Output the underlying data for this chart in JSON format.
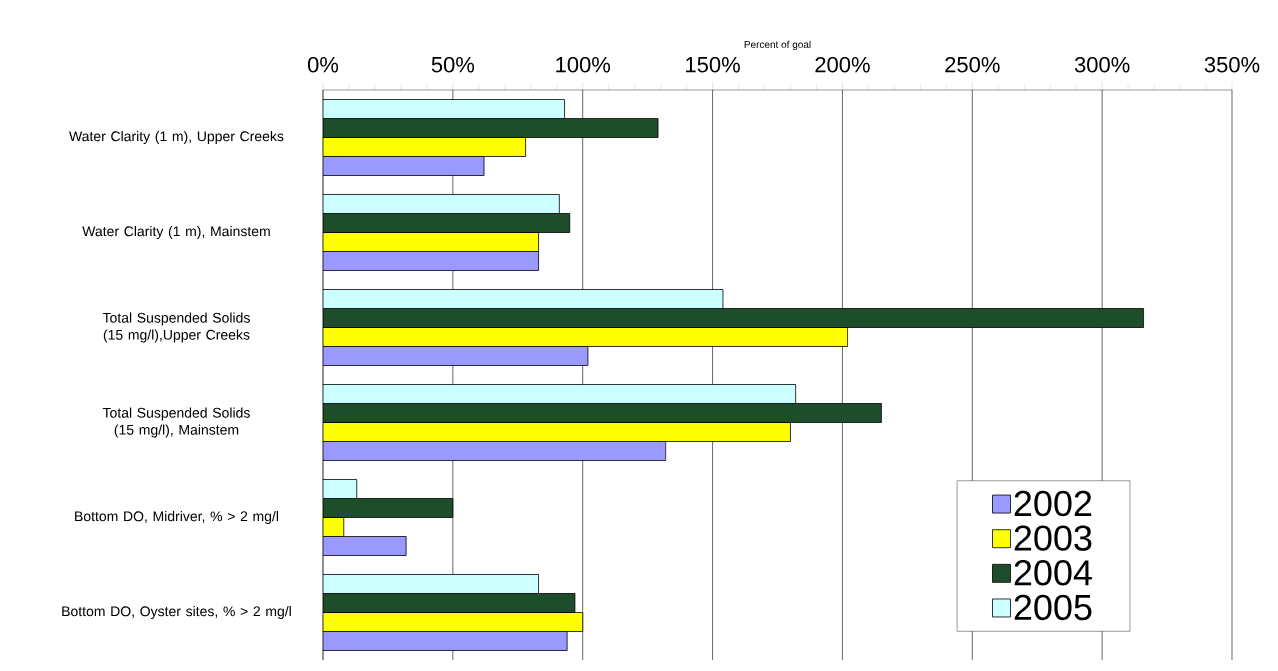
{
  "chart_data": {
    "type": "bar",
    "orientation": "horizontal",
    "xlabel": "Percent of goal",
    "categories": [
      "Water Clarity (1 m), Upper Creeks",
      "Water Clarity (1 m), Mainstem",
      "Total Suspended Solids (15 mg/l),Upper Creeks",
      "Total Suspended Solids (15 mg/l), Mainstem",
      "Bottom DO, Midriver, % > 2 mg/l",
      "Bottom DO, Oyster sites, % > 2 mg/l"
    ],
    "series": [
      {
        "name": "2002",
        "color": "#9999ff",
        "values": [
          62,
          83,
          102,
          132,
          32,
          94
        ]
      },
      {
        "name": "2003",
        "color": "#ffff00",
        "values": [
          78,
          83,
          202,
          180,
          8,
          100
        ]
      },
      {
        "name": "2004",
        "color": "#1e4d2b",
        "values": [
          129,
          95,
          316,
          215,
          50,
          97
        ]
      },
      {
        "name": "2005",
        "color": "#ccffff",
        "values": [
          93,
          91,
          154,
          182,
          13,
          83
        ]
      }
    ],
    "xlim": [
      0,
      350
    ],
    "xticks": [
      {
        "value": 0,
        "label": "0%"
      },
      {
        "value": 50,
        "label": "50%"
      },
      {
        "value": 100,
        "label": "100%"
      },
      {
        "value": 150,
        "label": "150%"
      },
      {
        "value": 200,
        "label": "200%"
      },
      {
        "value": 250,
        "label": "250%"
      },
      {
        "value": 300,
        "label": "300%"
      },
      {
        "value": 350,
        "label": "350%"
      }
    ],
    "grid": "x",
    "legend": "bottom right"
  }
}
